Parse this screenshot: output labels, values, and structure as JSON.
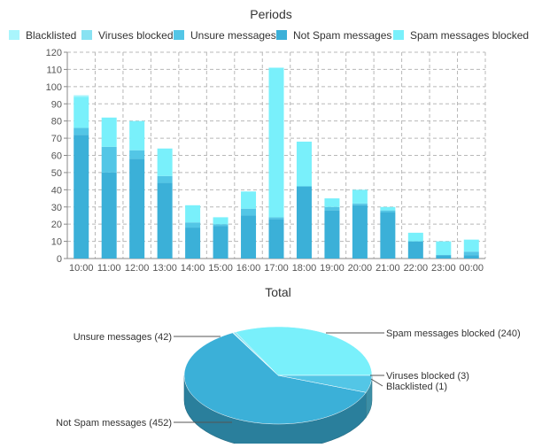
{
  "chart_data": [
    {
      "type": "bar",
      "stacked": true,
      "title": "Periods",
      "xlabel": "",
      "ylabel": "",
      "ylim": [
        0,
        120
      ],
      "yticks": [
        0,
        10,
        20,
        30,
        40,
        50,
        60,
        70,
        80,
        90,
        100,
        110,
        120
      ],
      "grid": true,
      "legend_position": "top",
      "categories": [
        "10:00",
        "11:00",
        "12:00",
        "13:00",
        "14:00",
        "15:00",
        "16:00",
        "17:00",
        "18:00",
        "19:00",
        "20:00",
        "21:00",
        "22:00",
        "23:00",
        "00:00"
      ],
      "series": [
        {
          "name": "Not Spam messages",
          "color": "#3bb0d8",
          "values": [
            72,
            50,
            58,
            44,
            18,
            19,
            25,
            23,
            42,
            28,
            31,
            27,
            10,
            2,
            2
          ]
        },
        {
          "name": "Unsure messages",
          "color": "#53c6e6",
          "values": [
            4,
            15,
            5,
            4,
            3,
            1,
            4,
            1,
            0,
            2,
            1,
            1,
            0,
            0,
            2
          ]
        },
        {
          "name": "Viruses blocked",
          "color": "#88e2f2",
          "values": [
            0,
            0,
            0,
            0,
            0,
            0,
            0,
            0,
            0,
            0,
            0,
            0,
            0,
            0,
            0
          ]
        },
        {
          "name": "Spam messages blocked",
          "color": "#79f0fb",
          "values": [
            18,
            17,
            17,
            16,
            10,
            4,
            10,
            87,
            26,
            5,
            8,
            2,
            5,
            8,
            7
          ]
        },
        {
          "name": "Blacklisted",
          "color": "#a9f5fc",
          "values": [
            1,
            0,
            0,
            0,
            0,
            0,
            0,
            0,
            0,
            0,
            0,
            0,
            0,
            0,
            0
          ]
        }
      ],
      "legend": [
        {
          "name": "Blacklisted",
          "color": "#a9f5fc"
        },
        {
          "name": "Viruses blocked",
          "color": "#88e2f2"
        },
        {
          "name": "Unsure messages",
          "color": "#53c6e6"
        },
        {
          "name": "Not Spam messages",
          "color": "#3bb0d8"
        },
        {
          "name": "Spam messages blocked",
          "color": "#79f0fb"
        }
      ]
    },
    {
      "type": "pie",
      "title": "Total",
      "slices": [
        {
          "name": "Spam messages blocked",
          "value": 240,
          "label": "Spam messages blocked (240)",
          "color": "#79f0fb"
        },
        {
          "name": "Viruses blocked",
          "value": 3,
          "label": "Viruses blocked (3)",
          "color": "#88e2f2"
        },
        {
          "name": "Blacklisted",
          "value": 1,
          "label": "Blacklisted (1)",
          "color": "#a9f5fc"
        },
        {
          "name": "Not Spam messages",
          "value": 452,
          "label": "Not Spam messages (452)",
          "color": "#3bb0d8"
        },
        {
          "name": "Unsure messages",
          "value": 42,
          "label": "Unsure messages (42)",
          "color": "#53c6e6"
        }
      ]
    }
  ]
}
